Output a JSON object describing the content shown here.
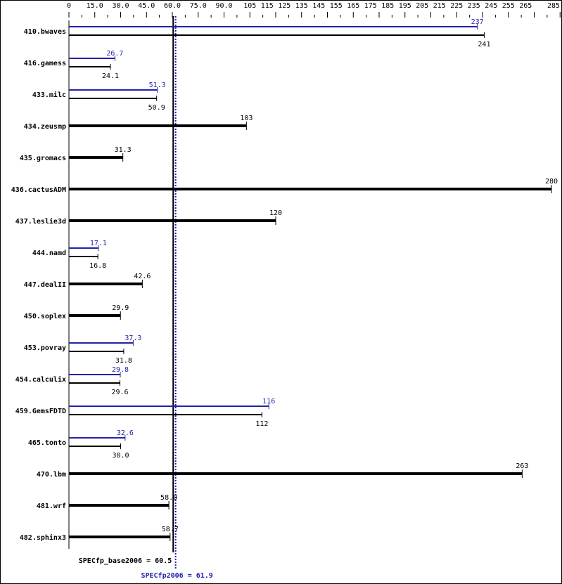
{
  "chart_data": {
    "type": "bar",
    "orientation": "horizontal",
    "xlim": [
      0,
      285
    ],
    "ticks": [
      "0",
      "15.0",
      "30.0",
      "45.0",
      "60.0",
      "75.0",
      "90.0",
      "105",
      "115",
      "125",
      "135",
      "145",
      "155",
      "165",
      "175",
      "185",
      "195",
      "205",
      "215",
      "225",
      "235",
      "245",
      "255",
      "265",
      "285"
    ],
    "tick_values": [
      0,
      15,
      30,
      45,
      60,
      75,
      90,
      105,
      115,
      125,
      135,
      145,
      155,
      165,
      175,
      185,
      195,
      205,
      215,
      225,
      235,
      245,
      255,
      265,
      285
    ],
    "categories": [
      "410.bwaves",
      "416.gamess",
      "433.milc",
      "434.zeusmp",
      "435.gromacs",
      "436.cactusADM",
      "437.leslie3d",
      "444.namd",
      "447.dealII",
      "450.soplex",
      "453.povray",
      "454.calculix",
      "459.GemsFDTD",
      "465.tonto",
      "470.lbm",
      "481.wrf",
      "482.sphinx3"
    ],
    "series": [
      {
        "color": "#2222aa",
        "values": [
          237,
          26.7,
          51.3,
          null,
          null,
          null,
          null,
          17.1,
          null,
          null,
          37.3,
          29.8,
          116,
          32.6,
          null,
          null,
          null
        ]
      },
      {
        "color": "#000000",
        "values": [
          241,
          24.1,
          50.9,
          103,
          31.3,
          280,
          120,
          16.8,
          42.6,
          29.9,
          31.8,
          29.6,
          112,
          30.0,
          263,
          58.0,
          58.7
        ]
      }
    ],
    "value_labels": {
      "peak": [
        "237",
        "26.7",
        "51.3",
        "",
        "",
        "",
        "",
        "17.1",
        "",
        "",
        "37.3",
        "29.8",
        "116",
        "32.6",
        "",
        "",
        ""
      ],
      "base": [
        "241",
        "24.1",
        "50.9",
        "103",
        "31.3",
        "280",
        "120",
        "16.8",
        "42.6",
        "29.9",
        "31.8",
        "29.6",
        "112",
        "30.0",
        "263",
        "58.0",
        "58.7"
      ]
    },
    "reference_lines": [
      {
        "label": "SPECfp_base2006 = 60.5",
        "value": 60.5,
        "color": "#000000",
        "style": "solid"
      },
      {
        "label": "SPECfp2006 = 61.9",
        "value": 61.9,
        "color": "#2222aa",
        "style": "dotted"
      }
    ]
  }
}
